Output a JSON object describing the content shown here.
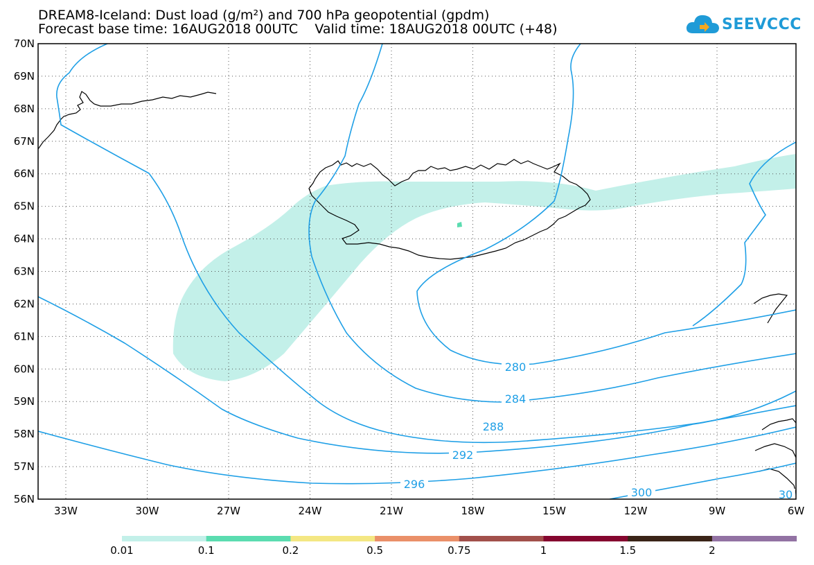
{
  "header": {
    "title_line1": "DREAM8-Iceland: Dust load (g/m²) and 700 hPa geopotential (gpdm)",
    "title_line2": "Forecast base time: 16AUG2018 00UTC    Valid time: 18AUG2018 00UTC (+48)",
    "logo_text": "SEEVCCC"
  },
  "map": {
    "lon_ticks": [
      "33W",
      "30W",
      "27W",
      "24W",
      "21W",
      "18W",
      "15W",
      "12W",
      "9W",
      "6W"
    ],
    "lat_ticks": [
      "70N",
      "69N",
      "68N",
      "67N",
      "66N",
      "65N",
      "64N",
      "63N",
      "62N",
      "61N",
      "60N",
      "59N",
      "58N",
      "57N",
      "56N"
    ],
    "contour_labels": [
      "280",
      "284",
      "288",
      "292",
      "296",
      "300",
      "30"
    ],
    "dust_color": "#c3f0e9",
    "contour_color": "#1e9fe6",
    "coast_color": "#000000"
  },
  "colorbar": {
    "levels": [
      "0.01",
      "0.1",
      "0.2",
      "0.5",
      "0.75",
      "1",
      "1.5",
      "2"
    ],
    "colors": [
      "#c3f0e9",
      "#5bdcb0",
      "#f4e783",
      "#ea9069",
      "#a2504b",
      "#85062f",
      "#3a2418",
      "#9272a3"
    ]
  }
}
